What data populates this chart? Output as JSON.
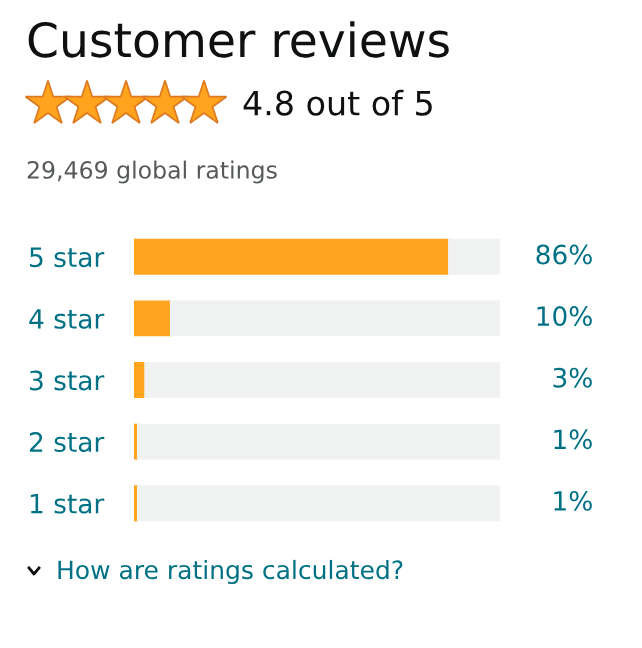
{
  "chart_data": {
    "type": "bar",
    "orientation": "horizontal",
    "stacked": true,
    "title": "Customer reviews",
    "subtitle": "4.8 out of 5",
    "annotations": [
      "29,469 global ratings",
      "How are ratings calculated?"
    ],
    "categories": [
      "5 star",
      "4 star",
      "3 star",
      "2 star",
      "1 star"
    ],
    "series": [
      {
        "color": "#ffa41c",
        "values": [
          86,
          10,
          3,
          1,
          1
        ],
        "value_labels": [
          "86%",
          "10%",
          "3%",
          "1%",
          "1%"
        ]
      },
      {
        "color": "#f0f2f2",
        "values": [
          14,
          90,
          97,
          99,
          99
        ]
      }
    ],
    "xlim": [
      0,
      100
    ],
    "tick_labels": "y",
    "grid": false,
    "legend": false
  }
}
